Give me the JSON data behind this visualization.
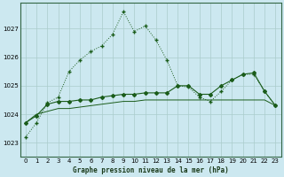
{
  "title": "Graphe pression niveau de la mer (hPa)",
  "bg_color": "#cce8f0",
  "grid_color": "#aacccc",
  "line_color": "#1a5c1a",
  "xlim": [
    -0.5,
    23.5
  ],
  "ylim": [
    1022.5,
    1027.9
  ],
  "yticks": [
    1023,
    1024,
    1025,
    1026,
    1027
  ],
  "xticks": [
    0,
    1,
    2,
    3,
    4,
    5,
    6,
    7,
    8,
    9,
    10,
    11,
    12,
    13,
    14,
    15,
    16,
    17,
    18,
    19,
    20,
    21,
    22,
    23
  ],
  "series1_x": [
    0,
    1,
    2,
    3,
    4,
    5,
    6,
    7,
    8,
    9,
    10,
    11,
    12,
    13,
    14,
    15,
    16,
    17,
    18,
    19,
    20,
    21,
    22,
    23
  ],
  "series1_y": [
    1023.2,
    1023.7,
    1024.4,
    1024.6,
    1025.5,
    1025.9,
    1026.2,
    1026.4,
    1026.8,
    1027.6,
    1026.9,
    1027.1,
    1026.6,
    1025.9,
    1025.0,
    1024.95,
    1024.6,
    1024.45,
    1024.8,
    1025.2,
    1025.4,
    1025.4,
    1024.8,
    1024.3
  ],
  "series2_x": [
    0,
    1,
    2,
    3,
    4,
    5,
    6,
    7,
    8,
    9,
    10,
    11,
    12,
    13,
    14,
    15,
    16,
    17,
    18,
    19,
    20,
    21,
    22,
    23
  ],
  "series2_y": [
    1023.7,
    1023.95,
    1024.35,
    1024.45,
    1024.45,
    1024.5,
    1024.5,
    1024.6,
    1024.65,
    1024.7,
    1024.7,
    1024.75,
    1024.75,
    1024.75,
    1025.0,
    1025.0,
    1024.7,
    1024.7,
    1025.0,
    1025.2,
    1025.4,
    1025.45,
    1024.8,
    1024.3
  ],
  "series3_x": [
    0,
    1,
    2,
    3,
    4,
    5,
    6,
    7,
    8,
    9,
    10,
    11,
    12,
    13,
    14,
    15,
    16,
    17,
    18,
    19,
    20,
    21,
    22,
    23
  ],
  "series3_y": [
    1023.7,
    1024.0,
    1024.1,
    1024.2,
    1024.2,
    1024.25,
    1024.3,
    1024.35,
    1024.4,
    1024.45,
    1024.45,
    1024.5,
    1024.5,
    1024.5,
    1024.5,
    1024.5,
    1024.5,
    1024.5,
    1024.5,
    1024.5,
    1024.5,
    1024.5,
    1024.5,
    1024.3
  ]
}
